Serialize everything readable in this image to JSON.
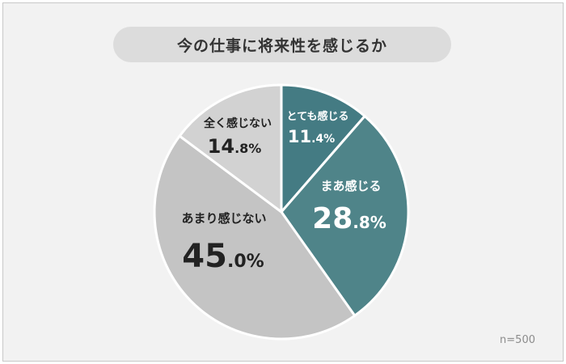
{
  "chart_data": {
    "type": "pie",
    "title": "今の仕事に将来性を感じるか",
    "note": "n=500",
    "slices": [
      {
        "label": "とても感じる",
        "value": 11.4,
        "int": "11",
        "dec": ".4%",
        "color": "#447b83",
        "text_color": "#ffffff"
      },
      {
        "label": "まあ感じる",
        "value": 28.8,
        "int": "28",
        "dec": ".8%",
        "color": "#4f8489",
        "text_color": "#ffffff"
      },
      {
        "label": "あまり感じない",
        "value": 45.0,
        "int": "45",
        "dec": ".0%",
        "color": "#c4c4c4",
        "text_color": "#222222"
      },
      {
        "label": "全く感じない",
        "value": 14.8,
        "int": "14",
        "dec": ".8%",
        "color": "#d2d2d2",
        "text_color": "#222222"
      }
    ]
  }
}
